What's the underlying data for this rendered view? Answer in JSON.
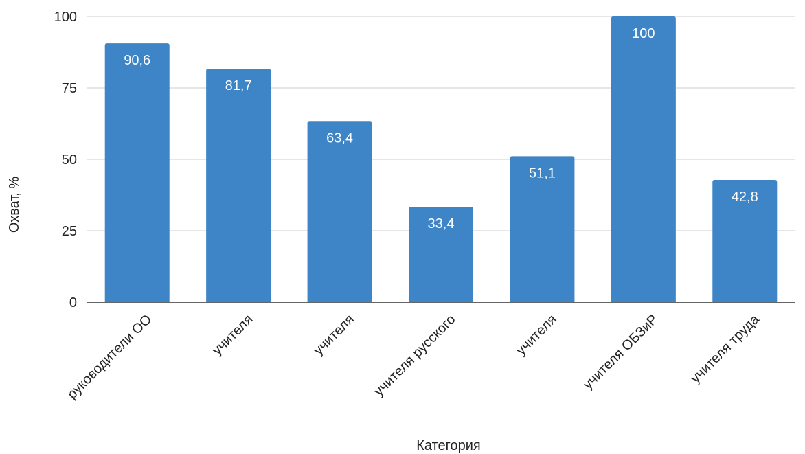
{
  "chart_data": {
    "type": "bar",
    "title": "",
    "xlabel": "Категория",
    "ylabel": "Охват, %",
    "categories": [
      "руководители ОО",
      "учителя",
      "учителя",
      "учителя русского",
      "учителя",
      "учителя ОБЗиР",
      "учителя труда"
    ],
    "values": [
      90.6,
      81.7,
      63.4,
      33.4,
      51.1,
      100,
      42.8
    ],
    "value_labels": [
      "90,6",
      "81,7",
      "63,4",
      "33,4",
      "51,1",
      "100",
      "42,8"
    ],
    "ylim": [
      0,
      100
    ],
    "yticks": [
      0,
      25,
      50,
      75,
      100
    ],
    "grid": true,
    "legend": "none",
    "colors": {
      "bar": "#3d85c6",
      "grid": "#cccccc",
      "axis": "#333333"
    }
  }
}
